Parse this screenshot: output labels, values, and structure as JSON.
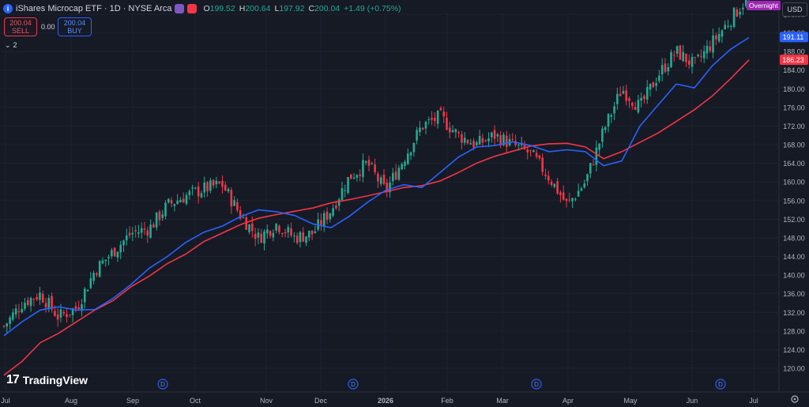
{
  "header": {
    "symbol_logo": "i",
    "title": "iShares Microcap ETF · 1D · NYSE Arca",
    "ohlc": {
      "o_label": "O",
      "o_value": "199.52",
      "h_label": "H",
      "h_value": "200.64",
      "l_label": "L",
      "l_value": "197.92",
      "c_label": "C",
      "c_value": "200.04",
      "change": "+1.49 (+0.75%)"
    }
  },
  "trade": {
    "sell_price": "200.04",
    "sell_label": "SELL",
    "spread": "0.00",
    "buy_price": "200.04",
    "buy_label": "BUY"
  },
  "indicators_collapse": {
    "count": "2"
  },
  "currency": "USD",
  "session_badge": "Overnight",
  "brand": {
    "name": "TradingView"
  },
  "colors": {
    "background": "#161a25",
    "up": "#22ab94",
    "down": "#f23645",
    "ma_fast": "#2962ff",
    "ma_slow": "#f23645",
    "session": "#9c27b0"
  },
  "chart_data": {
    "type": "candlestick",
    "timeframe": "1D",
    "ylim": [
      118,
      202
    ],
    "y_ticks": [
      "120.00",
      "124.00",
      "128.00",
      "132.00",
      "136.00",
      "140.00",
      "144.00",
      "148.00",
      "152.00",
      "156.00",
      "160.00",
      "164.00",
      "168.00",
      "172.00",
      "176.00",
      "180.00",
      "184.00",
      "188.00",
      "192.00",
      "196.00"
    ],
    "x_ticks": [
      "Jul",
      "Aug",
      "Sep",
      "Oct",
      "Nov",
      "Dec",
      "2026",
      "Feb",
      "Mar",
      "Apr",
      "May",
      "Jun",
      "Jul"
    ],
    "price_labels": {
      "last": "200.04",
      "ma_fast": "191.11",
      "ma_slow": "186.23"
    },
    "dividend_markers": [
      "D",
      "D",
      "D",
      "D"
    ],
    "ma_fast_path": [
      [
        0,
        127
      ],
      [
        1,
        130
      ],
      [
        2,
        132.5
      ],
      [
        3,
        133.2
      ],
      [
        4,
        132.5
      ],
      [
        5,
        132.6
      ],
      [
        6,
        135
      ],
      [
        7,
        138
      ],
      [
        8,
        141.5
      ],
      [
        9,
        144
      ],
      [
        10,
        147
      ],
      [
        11,
        149.2
      ],
      [
        12,
        150.5
      ],
      [
        13,
        152.5
      ],
      [
        14,
        154
      ],
      [
        15,
        153.6
      ],
      [
        16,
        152.8
      ],
      [
        17,
        151
      ],
      [
        18,
        150.2
      ],
      [
        19,
        152.6
      ],
      [
        20,
        155.6
      ],
      [
        21,
        158.2
      ],
      [
        22,
        159.4
      ],
      [
        23,
        158.8
      ],
      [
        24,
        162
      ],
      [
        25,
        165.3
      ],
      [
        26,
        167.5
      ],
      [
        27,
        167.8
      ],
      [
        28,
        168.6
      ],
      [
        29,
        167.8
      ],
      [
        30,
        166.5
      ],
      [
        31,
        166.9
      ],
      [
        32,
        166.5
      ],
      [
        33,
        163.5
      ],
      [
        34,
        164.5
      ],
      [
        35,
        172
      ],
      [
        36,
        176.5
      ],
      [
        37,
        181
      ],
      [
        38,
        180.2
      ],
      [
        39,
        185
      ],
      [
        40,
        188.5
      ],
      [
        41,
        191
      ]
    ],
    "ma_slow_path": [
      [
        0,
        118.5
      ],
      [
        1,
        121.5
      ],
      [
        2,
        125.5
      ],
      [
        3,
        127.5
      ],
      [
        4,
        130
      ],
      [
        5,
        132.5
      ],
      [
        6,
        134.5
      ],
      [
        7,
        137.5
      ],
      [
        8,
        139.8
      ],
      [
        9,
        142.5
      ],
      [
        10,
        144.5
      ],
      [
        11,
        147.2
      ],
      [
        12,
        149
      ],
      [
        13,
        150.8
      ],
      [
        14,
        152.2
      ],
      [
        15,
        153
      ],
      [
        16,
        153.7
      ],
      [
        17,
        154.4
      ],
      [
        18,
        155.5
      ],
      [
        19,
        156.2
      ],
      [
        20,
        157
      ],
      [
        21,
        157.9
      ],
      [
        22,
        158.8
      ],
      [
        23,
        159.2
      ],
      [
        24,
        160.2
      ],
      [
        25,
        162
      ],
      [
        26,
        164
      ],
      [
        27,
        165.5
      ],
      [
        28,
        166.6
      ],
      [
        29,
        167.7
      ],
      [
        30,
        168.2
      ],
      [
        31,
        168.3
      ],
      [
        32,
        167.5
      ],
      [
        33,
        165
      ],
      [
        34,
        166.5
      ],
      [
        35,
        168.5
      ],
      [
        36,
        170.5
      ],
      [
        37,
        173
      ],
      [
        38,
        175.5
      ],
      [
        39,
        178.5
      ],
      [
        40,
        182.2
      ],
      [
        41,
        186.2
      ]
    ],
    "close_path": [
      [
        0,
        129
      ],
      [
        1,
        134
      ],
      [
        2,
        136
      ],
      [
        3,
        131
      ],
      [
        4,
        133
      ],
      [
        5,
        141
      ],
      [
        6,
        145
      ],
      [
        7,
        149
      ],
      [
        8,
        150
      ],
      [
        9,
        155
      ],
      [
        10,
        157
      ],
      [
        11,
        158.5
      ],
      [
        12,
        159.5
      ],
      [
        13,
        153
      ],
      [
        14,
        148
      ],
      [
        15,
        151
      ],
      [
        16,
        148
      ],
      [
        17,
        149
      ],
      [
        18,
        154
      ],
      [
        19,
        161
      ],
      [
        20,
        164
      ],
      [
        21,
        158
      ],
      [
        22,
        165
      ],
      [
        23,
        172
      ],
      [
        24,
        174
      ],
      [
        25,
        170
      ],
      [
        26,
        168
      ],
      [
        27,
        170
      ],
      [
        28,
        168
      ],
      [
        29,
        166
      ],
      [
        30,
        161
      ],
      [
        31,
        155
      ],
      [
        32,
        160
      ],
      [
        33,
        171
      ],
      [
        34,
        180
      ],
      [
        35,
        176
      ],
      [
        36,
        183
      ],
      [
        37,
        188
      ],
      [
        38,
        185
      ],
      [
        39,
        190
      ],
      [
        40,
        195
      ],
      [
        41,
        200
      ]
    ]
  }
}
